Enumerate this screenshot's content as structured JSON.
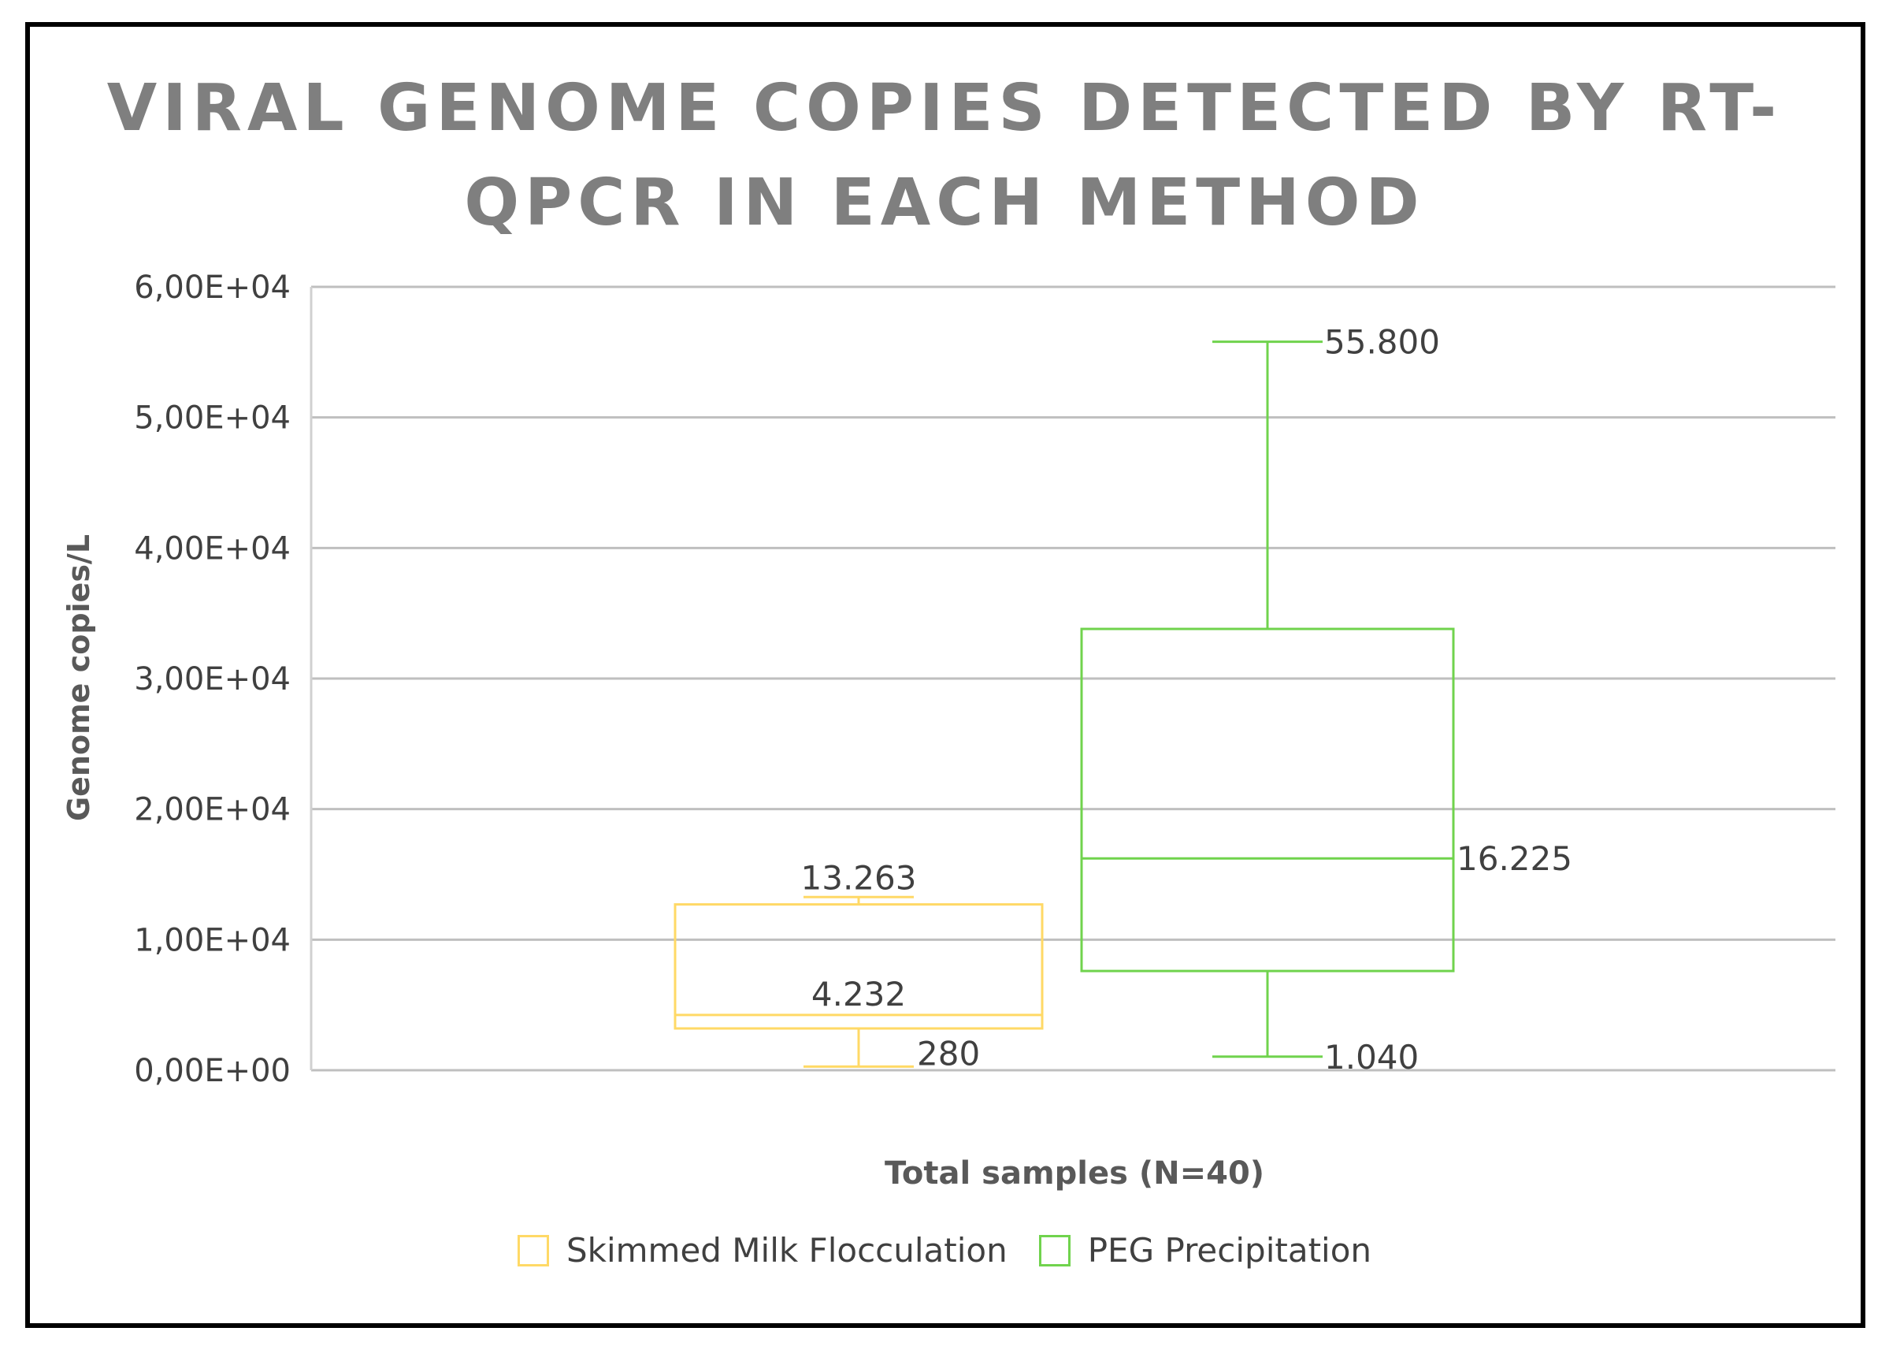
{
  "chart_data": {
    "type": "box",
    "title_lines": [
      "VIRAL GENOME COPIES DETECTED BY RT-",
      "QPCR IN EACH METHOD"
    ],
    "xlabel": "Total samples (N=40)",
    "ylabel": "Genome copies/L",
    "ylim": [
      0,
      60000
    ],
    "ytick_values": [
      0,
      10000,
      20000,
      30000,
      40000,
      50000,
      60000
    ],
    "ytick_labels": [
      "0,00E+00",
      "1,00E+04",
      "2,00E+04",
      "3,00E+04",
      "4,00E+04",
      "5,00E+04",
      "6,00E+04"
    ],
    "grid": true,
    "legend_position": "bottom",
    "series": [
      {
        "name": "Skimmed Milk Flocculation",
        "color": "#ffd966",
        "min": 280,
        "q1": 3200,
        "median": 4232,
        "q3": 12700,
        "max": 13263,
        "labels": {
          "max": "13.263",
          "median": "4.232",
          "min": "280"
        }
      },
      {
        "name": "PEG Precipitation",
        "color": "#70d34d",
        "min": 1040,
        "q1": 7600,
        "median": 16225,
        "q3": 33800,
        "max": 55800,
        "labels": {
          "max": "55.800",
          "median": "16.225",
          "min": "1.040"
        }
      }
    ]
  }
}
